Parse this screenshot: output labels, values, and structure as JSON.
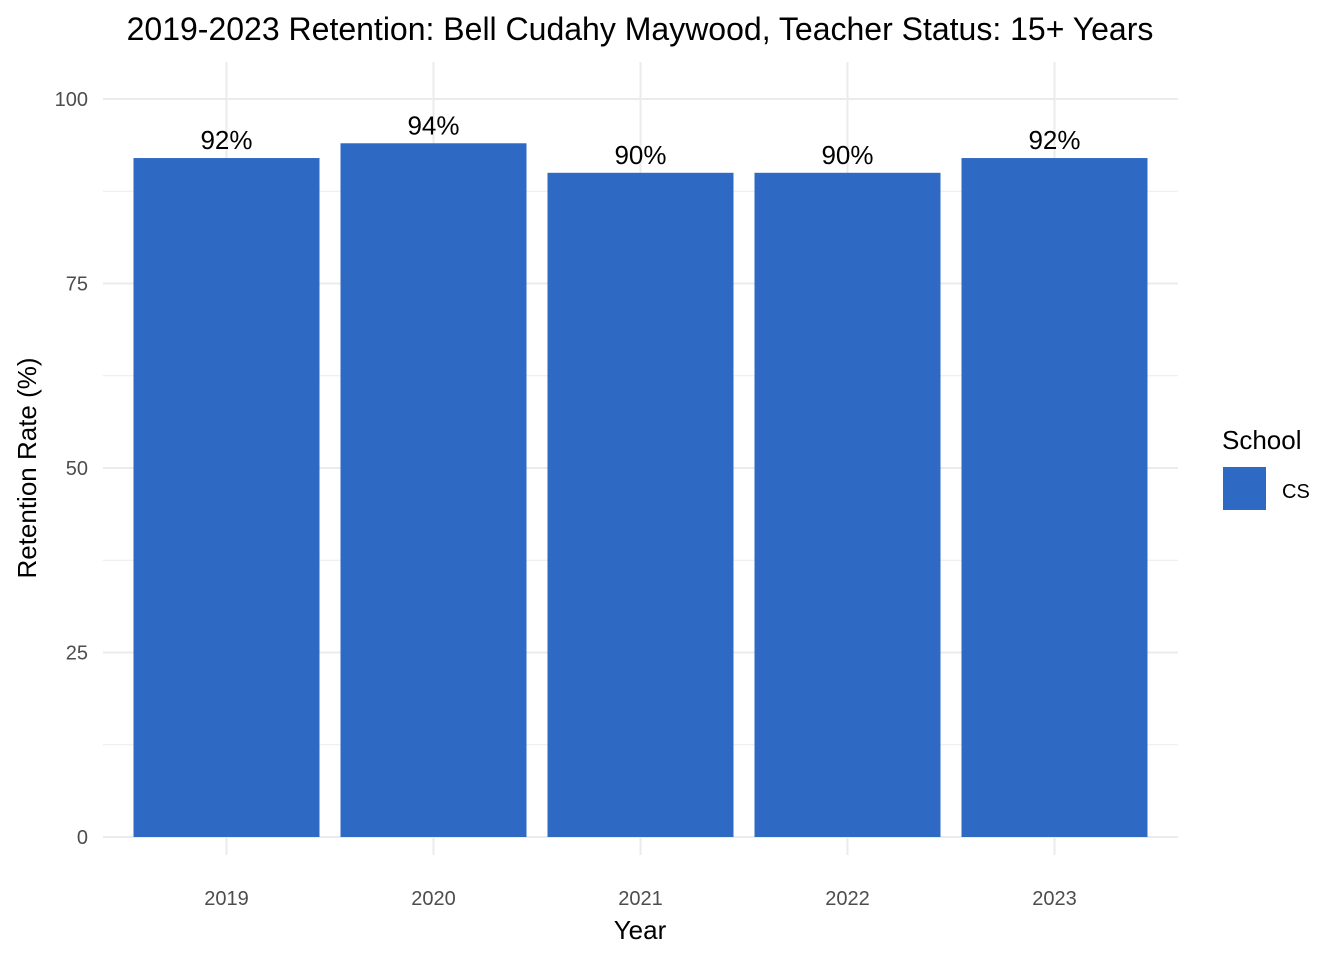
{
  "chart_data": {
    "type": "bar",
    "title": "2019-2023 Retention: Bell Cudahy Maywood, Teacher Status: 15+ Years",
    "xlabel": "Year",
    "ylabel": "Retention Rate (%)",
    "categories": [
      "2019",
      "2020",
      "2021",
      "2022",
      "2023"
    ],
    "series": [
      {
        "name": "CS",
        "values": [
          92,
          94,
          90,
          90,
          92
        ],
        "labels": [
          "92%",
          "94%",
          "90%",
          "90%",
          "92%"
        ]
      }
    ],
    "ylim": [
      0,
      100
    ],
    "yticks": [
      0,
      25,
      50,
      75,
      100
    ],
    "ytick_labels": [
      "0",
      "25",
      "50",
      "75",
      "100"
    ],
    "grid": true,
    "legend": {
      "title": "School",
      "position": "right"
    },
    "colors": {
      "bar": "#2e69c3",
      "grid": "#ebebeb",
      "tick_text": "#4d4d4d",
      "text": "#000000"
    }
  }
}
